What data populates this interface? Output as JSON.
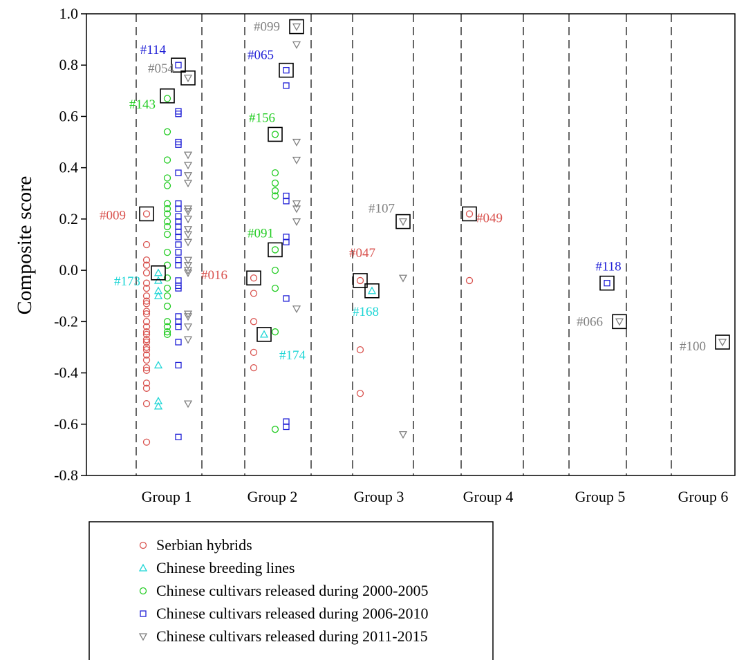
{
  "chart_data": {
    "type": "scatter",
    "ylabel": "Composite score",
    "ylim": [
      -0.8,
      1.0
    ],
    "yticks": [
      -0.8,
      -0.6,
      -0.4,
      -0.2,
      0.0,
      0.2,
      0.4,
      0.6,
      0.8,
      1.0
    ],
    "ytick_labels": [
      "-0.8",
      "-0.6",
      "-0.4",
      "-0.2",
      "0.0",
      "0.2",
      "0.4",
      "0.6",
      "0.8",
      "1.0"
    ],
    "categories": [
      "Group 1",
      "Group 2",
      "Group 3",
      "Group 4",
      "Group 5",
      "Group 6"
    ],
    "grid": false,
    "legend_position": "bottom",
    "series": [
      {
        "name": "Serbian hybrids",
        "marker": "circle",
        "color": "#d9534f",
        "points": [
          {
            "group": 1,
            "y": 0.22
          },
          {
            "group": 1,
            "y": 0.1
          },
          {
            "group": 1,
            "y": 0.04
          },
          {
            "group": 1,
            "y": 0.02
          },
          {
            "group": 1,
            "y": -0.01
          },
          {
            "group": 1,
            "y": -0.05
          },
          {
            "group": 1,
            "y": -0.07
          },
          {
            "group": 1,
            "y": -0.1
          },
          {
            "group": 1,
            "y": -0.12
          },
          {
            "group": 1,
            "y": -0.13
          },
          {
            "group": 1,
            "y": -0.16
          },
          {
            "group": 1,
            "y": -0.17
          },
          {
            "group": 1,
            "y": -0.2
          },
          {
            "group": 1,
            "y": -0.22
          },
          {
            "group": 1,
            "y": -0.24
          },
          {
            "group": 1,
            "y": -0.25
          },
          {
            "group": 1,
            "y": -0.27
          },
          {
            "group": 1,
            "y": -0.28
          },
          {
            "group": 1,
            "y": -0.3
          },
          {
            "group": 1,
            "y": -0.31
          },
          {
            "group": 1,
            "y": -0.33
          },
          {
            "group": 1,
            "y": -0.35
          },
          {
            "group": 1,
            "y": -0.38
          },
          {
            "group": 1,
            "y": -0.39
          },
          {
            "group": 1,
            "y": -0.44
          },
          {
            "group": 1,
            "y": -0.46
          },
          {
            "group": 1,
            "y": -0.52
          },
          {
            "group": 1,
            "y": -0.67
          },
          {
            "group": 2,
            "y": -0.03
          },
          {
            "group": 2,
            "y": -0.09
          },
          {
            "group": 2,
            "y": -0.2
          },
          {
            "group": 2,
            "y": -0.32
          },
          {
            "group": 2,
            "y": -0.38
          },
          {
            "group": 3,
            "y": -0.04
          },
          {
            "group": 3,
            "y": -0.31
          },
          {
            "group": 3,
            "y": -0.48
          },
          {
            "group": 4,
            "y": 0.22
          },
          {
            "group": 4,
            "y": -0.04
          }
        ]
      },
      {
        "name": "Chinese breeding lines",
        "marker": "triangle-up",
        "color": "#1fd6d6",
        "points": [
          {
            "group": 1,
            "y": -0.01
          },
          {
            "group": 1,
            "y": -0.04
          },
          {
            "group": 1,
            "y": -0.08
          },
          {
            "group": 1,
            "y": -0.1
          },
          {
            "group": 1,
            "y": -0.37
          },
          {
            "group": 1,
            "y": -0.51
          },
          {
            "group": 1,
            "y": -0.53
          },
          {
            "group": 2,
            "y": -0.25
          },
          {
            "group": 3,
            "y": -0.08
          }
        ]
      },
      {
        "name": "Chinese cultivars released during 2000-2005",
        "marker": "circle",
        "color": "#22cc22",
        "points": [
          {
            "group": 1,
            "y": 0.67
          },
          {
            "group": 1,
            "y": 0.54
          },
          {
            "group": 1,
            "y": 0.43
          },
          {
            "group": 1,
            "y": 0.36
          },
          {
            "group": 1,
            "y": 0.33
          },
          {
            "group": 1,
            "y": 0.26
          },
          {
            "group": 1,
            "y": 0.24
          },
          {
            "group": 1,
            "y": 0.22
          },
          {
            "group": 1,
            "y": 0.19
          },
          {
            "group": 1,
            "y": 0.17
          },
          {
            "group": 1,
            "y": 0.14
          },
          {
            "group": 1,
            "y": 0.07
          },
          {
            "group": 1,
            "y": 0.02
          },
          {
            "group": 1,
            "y": -0.03
          },
          {
            "group": 1,
            "y": -0.07
          },
          {
            "group": 1,
            "y": -0.1
          },
          {
            "group": 1,
            "y": -0.14
          },
          {
            "group": 1,
            "y": -0.2
          },
          {
            "group": 1,
            "y": -0.22
          },
          {
            "group": 1,
            "y": -0.24
          },
          {
            "group": 1,
            "y": -0.25
          },
          {
            "group": 2,
            "y": 0.53
          },
          {
            "group": 2,
            "y": 0.38
          },
          {
            "group": 2,
            "y": 0.34
          },
          {
            "group": 2,
            "y": 0.31
          },
          {
            "group": 2,
            "y": 0.29
          },
          {
            "group": 2,
            "y": 0.08
          },
          {
            "group": 2,
            "y": 0.0
          },
          {
            "group": 2,
            "y": -0.07
          },
          {
            "group": 2,
            "y": -0.24
          },
          {
            "group": 2,
            "y": -0.62
          }
        ]
      },
      {
        "name": "Chinese cultivars released during 2006-2010",
        "marker": "square",
        "color": "#1f1fd6",
        "points": [
          {
            "group": 1,
            "y": 0.8
          },
          {
            "group": 1,
            "y": 0.62
          },
          {
            "group": 1,
            "y": 0.61
          },
          {
            "group": 1,
            "y": 0.5
          },
          {
            "group": 1,
            "y": 0.49
          },
          {
            "group": 1,
            "y": 0.38
          },
          {
            "group": 1,
            "y": 0.26
          },
          {
            "group": 1,
            "y": 0.24
          },
          {
            "group": 1,
            "y": 0.21
          },
          {
            "group": 1,
            "y": 0.19
          },
          {
            "group": 1,
            "y": 0.17
          },
          {
            "group": 1,
            "y": 0.15
          },
          {
            "group": 1,
            "y": 0.13
          },
          {
            "group": 1,
            "y": 0.1
          },
          {
            "group": 1,
            "y": 0.07
          },
          {
            "group": 1,
            "y": 0.04
          },
          {
            "group": 1,
            "y": 0.02
          },
          {
            "group": 1,
            "y": -0.04
          },
          {
            "group": 1,
            "y": -0.06
          },
          {
            "group": 1,
            "y": -0.07
          },
          {
            "group": 1,
            "y": -0.18
          },
          {
            "group": 1,
            "y": -0.2
          },
          {
            "group": 1,
            "y": -0.22
          },
          {
            "group": 1,
            "y": -0.28
          },
          {
            "group": 1,
            "y": -0.37
          },
          {
            "group": 1,
            "y": -0.65
          },
          {
            "group": 2,
            "y": 0.78
          },
          {
            "group": 2,
            "y": 0.72
          },
          {
            "group": 2,
            "y": 0.29
          },
          {
            "group": 2,
            "y": 0.27
          },
          {
            "group": 2,
            "y": 0.13
          },
          {
            "group": 2,
            "y": 0.11
          },
          {
            "group": 2,
            "y": -0.11
          },
          {
            "group": 2,
            "y": -0.59
          },
          {
            "group": 2,
            "y": -0.61
          },
          {
            "group": 5,
            "y": -0.05
          }
        ]
      },
      {
        "name": "Chinese cultivars released during 2011-2015",
        "marker": "triangle-down",
        "color": "#808080",
        "points": [
          {
            "group": 1,
            "y": 0.75
          },
          {
            "group": 1,
            "y": 0.45
          },
          {
            "group": 1,
            "y": 0.41
          },
          {
            "group": 1,
            "y": 0.37
          },
          {
            "group": 1,
            "y": 0.34
          },
          {
            "group": 1,
            "y": 0.24
          },
          {
            "group": 1,
            "y": 0.23
          },
          {
            "group": 1,
            "y": 0.2
          },
          {
            "group": 1,
            "y": 0.16
          },
          {
            "group": 1,
            "y": 0.14
          },
          {
            "group": 1,
            "y": 0.11
          },
          {
            "group": 1,
            "y": 0.04
          },
          {
            "group": 1,
            "y": 0.02
          },
          {
            "group": 1,
            "y": 0.0
          },
          {
            "group": 1,
            "y": -0.01
          },
          {
            "group": 1,
            "y": -0.17
          },
          {
            "group": 1,
            "y": -0.18
          },
          {
            "group": 1,
            "y": -0.22
          },
          {
            "group": 1,
            "y": -0.27
          },
          {
            "group": 1,
            "y": -0.52
          },
          {
            "group": 2,
            "y": 0.95
          },
          {
            "group": 2,
            "y": 0.88
          },
          {
            "group": 2,
            "y": 0.5
          },
          {
            "group": 2,
            "y": 0.43
          },
          {
            "group": 2,
            "y": 0.26
          },
          {
            "group": 2,
            "y": 0.24
          },
          {
            "group": 2,
            "y": 0.19
          },
          {
            "group": 2,
            "y": -0.15
          },
          {
            "group": 3,
            "y": 0.19
          },
          {
            "group": 3,
            "y": -0.03
          },
          {
            "group": 3,
            "y": -0.64
          },
          {
            "group": 5,
            "y": -0.2
          },
          {
            "group": 6,
            "y": -0.28
          }
        ]
      }
    ],
    "annotations": [
      {
        "label": "#114",
        "series": 3,
        "group": 1,
        "y": 0.8
      },
      {
        "label": "#054",
        "series": 4,
        "group": 1,
        "y": 0.75
      },
      {
        "label": "#143",
        "series": 2,
        "group": 1,
        "y": 0.68
      },
      {
        "label": "#009",
        "series": 0,
        "group": 1,
        "y": 0.22
      },
      {
        "label": "#173",
        "series": 1,
        "group": 1,
        "y": -0.01
      },
      {
        "label": "#099",
        "series": 4,
        "group": 2,
        "y": 0.95
      },
      {
        "label": "#065",
        "series": 3,
        "group": 2,
        "y": 0.78
      },
      {
        "label": "#156",
        "series": 2,
        "group": 2,
        "y": 0.53
      },
      {
        "label": "#091",
        "series": 2,
        "group": 2,
        "y": 0.08
      },
      {
        "label": "#016",
        "series": 0,
        "group": 2,
        "y": -0.03
      },
      {
        "label": "#174",
        "series": 1,
        "group": 2,
        "y": -0.25
      },
      {
        "label": "#107",
        "series": 4,
        "group": 3,
        "y": 0.19
      },
      {
        "label": "#047",
        "series": 0,
        "group": 3,
        "y": -0.04
      },
      {
        "label": "#168",
        "series": 1,
        "group": 3,
        "y": -0.08
      },
      {
        "label": "#049",
        "series": 0,
        "group": 4,
        "y": 0.22
      },
      {
        "label": "#118",
        "series": 3,
        "group": 5,
        "y": -0.05
      },
      {
        "label": "#066",
        "series": 4,
        "group": 5,
        "y": -0.2
      },
      {
        "label": "#100",
        "series": 4,
        "group": 6,
        "y": -0.28
      }
    ]
  }
}
